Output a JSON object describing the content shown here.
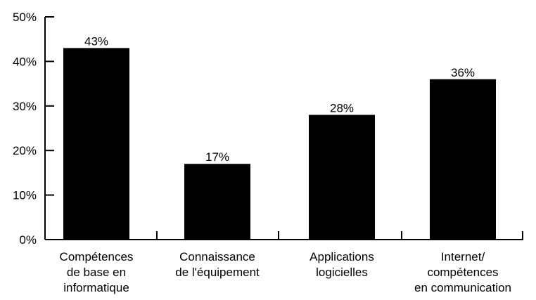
{
  "chart_data": {
    "type": "bar",
    "categories": [
      [
        "Compétences",
        "de base en",
        "informatique"
      ],
      [
        "Connaissance",
        "de l'équipement"
      ],
      [
        "Applications",
        "logicielles"
      ],
      [
        "Internet/",
        "compétences",
        "en communication"
      ]
    ],
    "values": [
      43,
      17,
      28,
      36
    ],
    "data_labels": [
      "43%",
      "17%",
      "28%",
      "36%"
    ],
    "y_ticks": [
      {
        "value": 0,
        "label": "0%"
      },
      {
        "value": 10,
        "label": "10%"
      },
      {
        "value": 20,
        "label": "20%"
      },
      {
        "value": 30,
        "label": "30%"
      },
      {
        "value": 40,
        "label": "40%"
      },
      {
        "value": 50,
        "label": "50%"
      }
    ],
    "ylim": [
      0,
      50
    ],
    "bar_color": "#000000",
    "axis_color": "#000000",
    "grid": false,
    "legend": "none"
  }
}
